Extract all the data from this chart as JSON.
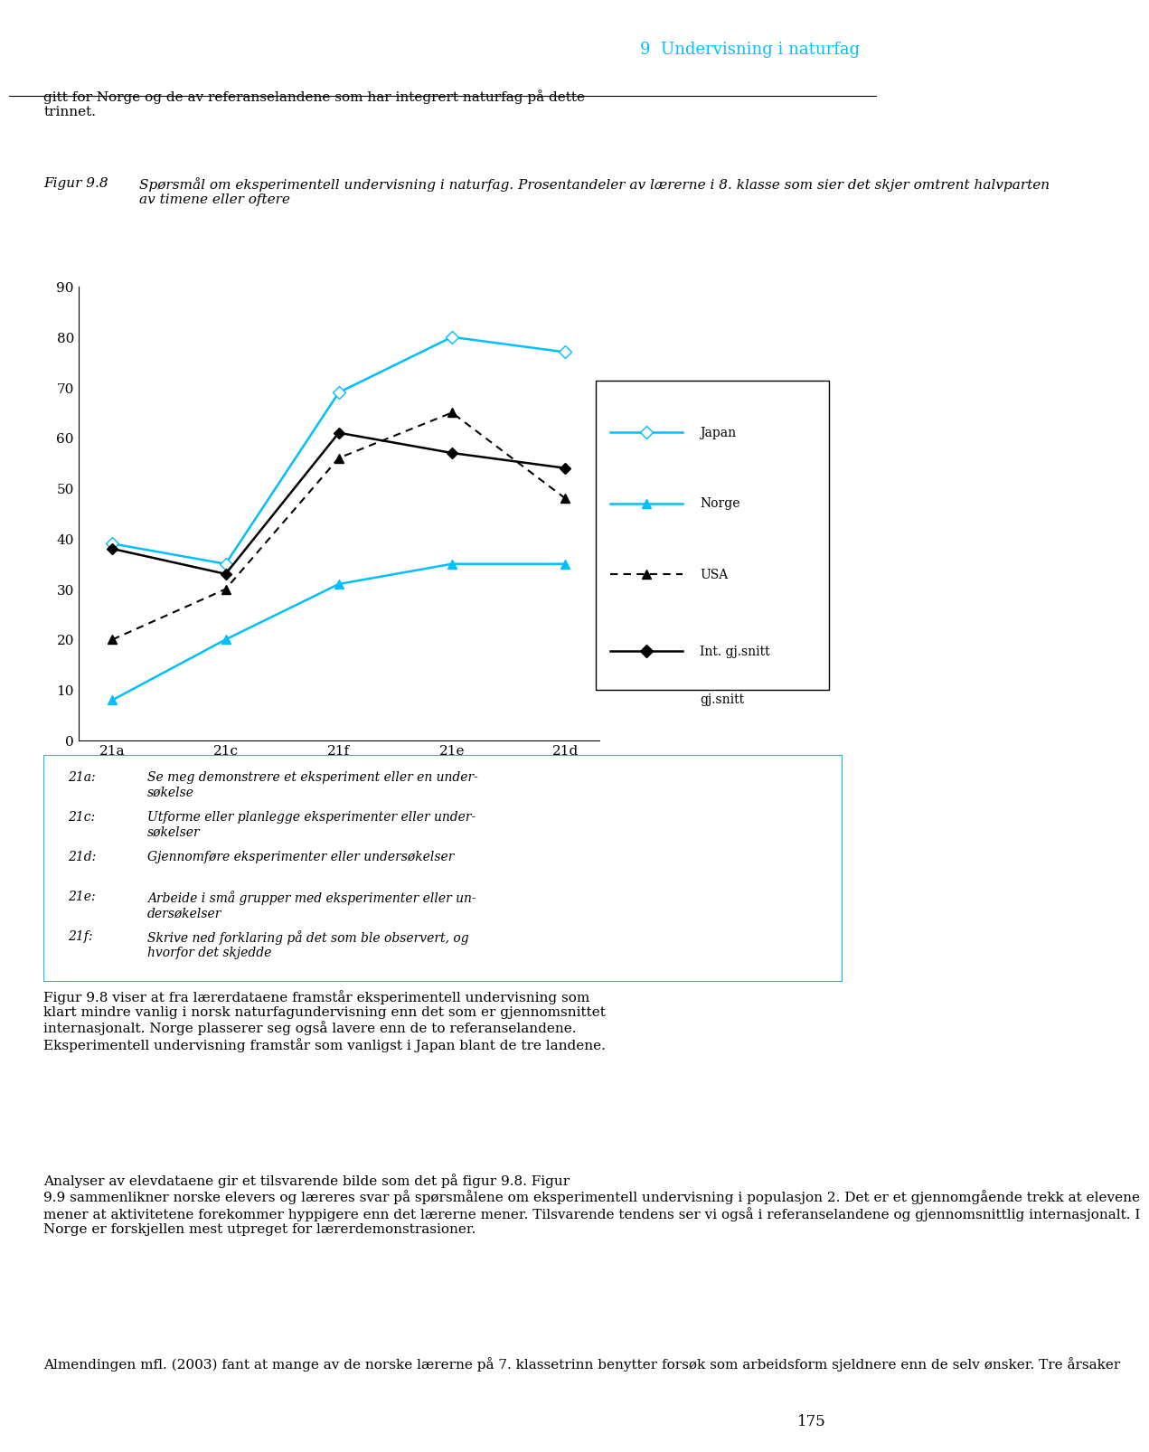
{
  "x_labels": [
    "21a",
    "21c",
    "21f",
    "21e",
    "21d"
  ],
  "japan": [
    39,
    35,
    69,
    80,
    77
  ],
  "norge": [
    8,
    20,
    31,
    35,
    35
  ],
  "usa": [
    20,
    30,
    56,
    65,
    48
  ],
  "int_gj": [
    38,
    33,
    61,
    57,
    54
  ],
  "japan_color": "#00BFFF",
  "norge_color": "#00BFFF",
  "usa_color": "#000000",
  "int_color": "#000000",
  "ylim": [
    0,
    90
  ],
  "yticks": [
    0,
    10,
    20,
    30,
    40,
    50,
    60,
    70,
    80,
    90
  ],
  "header_text": "9  Undervisning i naturfag",
  "header_color": "#00BFFF",
  "body_text1": "gitt for Norge og de av referanselandene som har integrert naturfag på dette\ntrinnet.",
  "caption_label": "Figur 9.8",
  "caption_text": "Spørsmål om eksperimentell undervisning i naturfag. Prosentandeler av lærerne i 8. klasse som sier det skjer omtrent halvparten\nav timene eller oftere",
  "legend_japan": "Japan",
  "legend_norge": "Norge",
  "legend_usa": "USA",
  "legend_int": "Int. gj.snitt",
  "annotation_21a": "21a:",
  "annotation_21a_text": "Se meg demonstrere et eksperiment eller en undersøkelse",
  "annotation_21c": "21c:",
  "annotation_21c_text": "Utforme eller planlegge eksperimenter eller undersøkelser",
  "annotation_21d": "21d:",
  "annotation_21d_text": "Gjennomføre eksperimenter eller undersøkelser",
  "annotation_21e": "21e:",
  "annotation_21e_text": "Arbeide i små grupper med eksperimenter eller undersøkelser",
  "annotation_21f": "21f:",
  "annotation_21f_text": "Skrive ned forklaring på det som ble observert, og hvorfor det skjedde",
  "bottom_text1": "Figur 9.8 viser at fra lærerdataene framstår eksperimentell undervisning som\nklart mindre vanlig i norsk naturfagundervisning enn det som er gjennomsnittet\ninternasjonalt. Norge plasserer seg også lavere enn de to referanselandene.\nEksperimentell undervisning framstår som vanligst i Japan blant de tre landene.",
  "bottom_text2": "Analyser av elevdataene gir et tilsvarende bilde som det på figur 9.8. Figur\n9.9 sammenlikner norske elevers og læreres svar på spørsmålene om eksperimentell undervisning i populasjon 2. Det er et gjennomgående trekk at elevene\nmener at aktivitetene forekommer hyppigere enn det lærerne mener. Tilsvarende tendens ser vi også i referanselandene og gjennomsnittlig internasjonalt. I\nNorge er forskjellen mest utpreget for lærerdemonstrasioner.",
  "bottom_text3": "Almendingen mfl. (2003) fant at mange av de norske lærerne på 7. klassetrinn benytter forsøk som arbeidsform sjeldnere enn de selv ønsker. Tre årsaker",
  "page_number": "175"
}
